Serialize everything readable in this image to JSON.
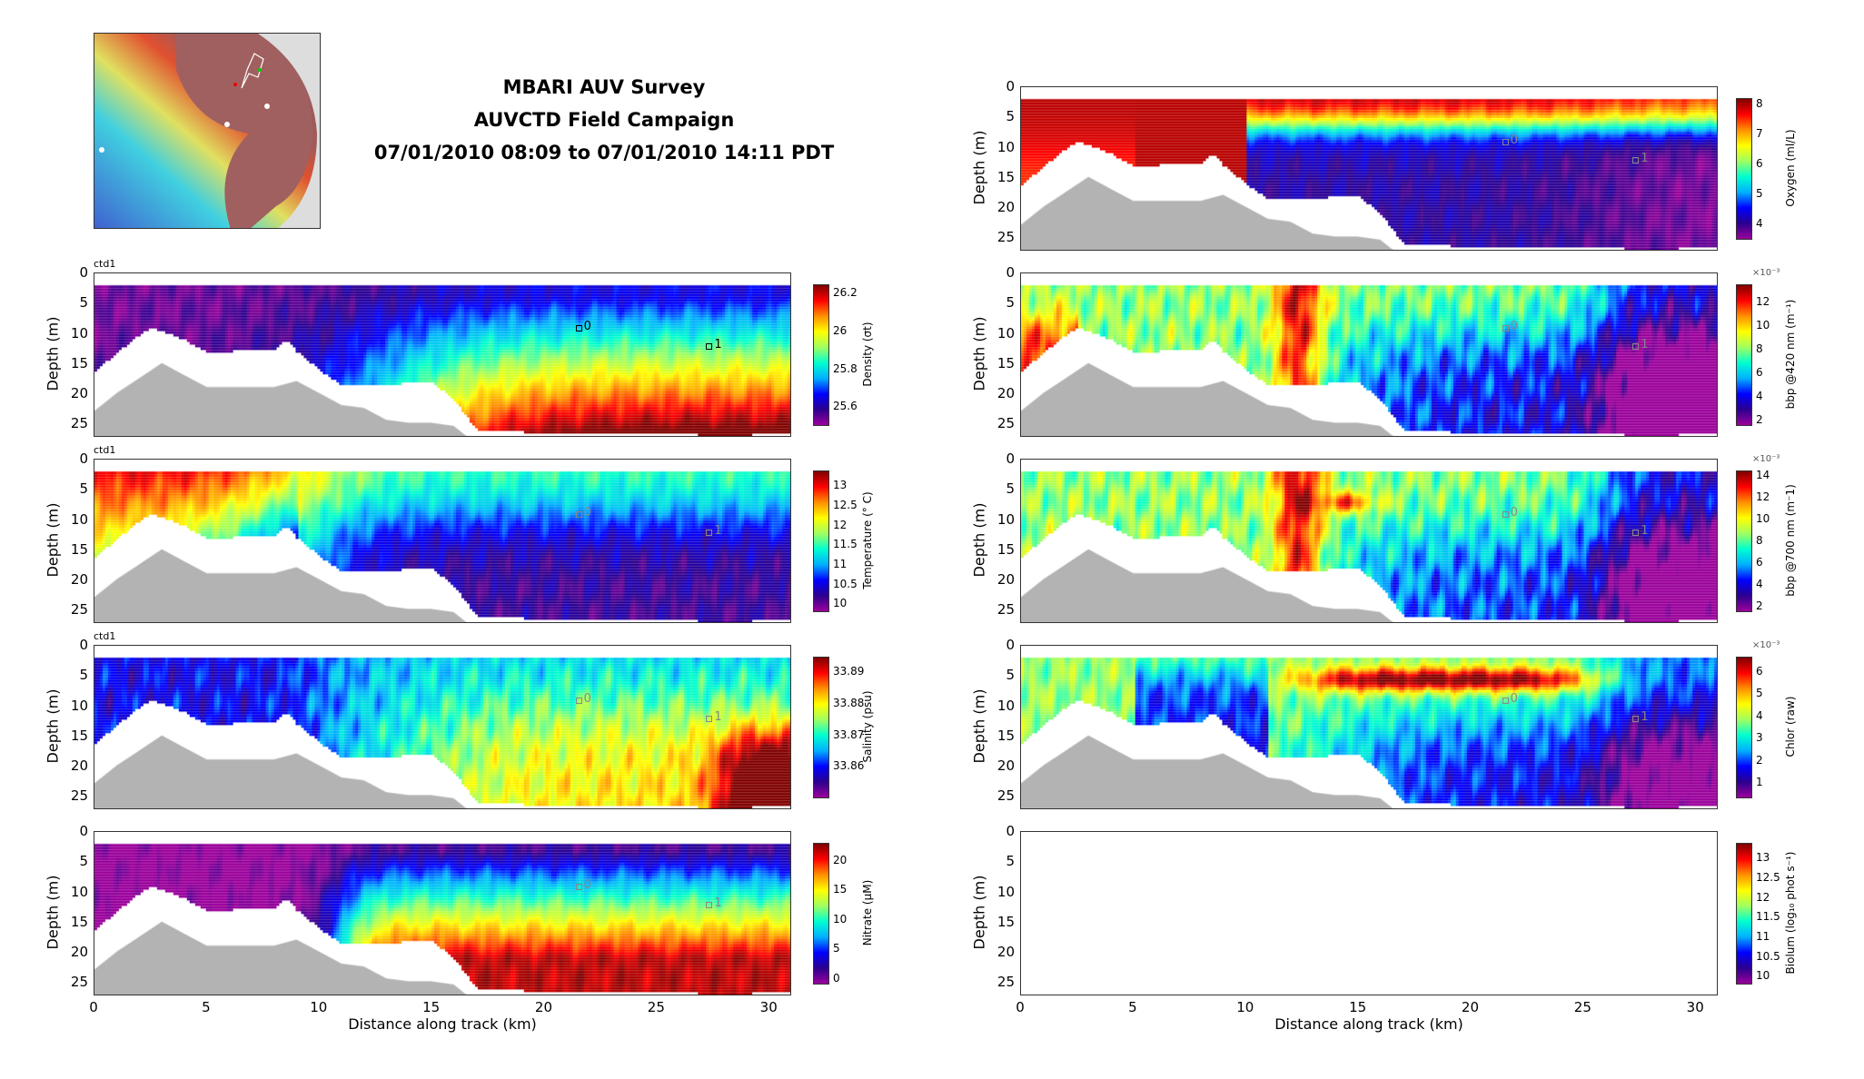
{
  "header": {
    "title_line1": "MBARI AUV Survey",
    "title_line2": "AUVCTD Field Campaign",
    "title_line3": "07/01/2010 08:09 to 07/01/2010 14:11 PDT"
  },
  "axes": {
    "xlabel": "Distance along track (km)",
    "ylabel": "Depth (m)",
    "xticks": [
      "0",
      "5",
      "10",
      "15",
      "20",
      "25",
      "30"
    ],
    "yticks": [
      "0",
      "5",
      "10",
      "15",
      "20",
      "25"
    ],
    "xlim": [
      0,
      31
    ],
    "ylim": [
      0,
      27.2
    ],
    "panel_tag": "ctd1"
  },
  "markers": [
    {
      "label": "0",
      "x_km": 21.5,
      "depth_m": 9
    },
    {
      "label": "1",
      "x_km": 27.3,
      "depth_m": 12
    }
  ],
  "chart_data": [
    {
      "type": "heatmap",
      "name": "density",
      "colorbar_label": "Density (σt)",
      "ticks": [
        "25.6",
        "25.8",
        "26",
        "26.2"
      ],
      "range": [
        25.5,
        26.25
      ],
      "tag": "ctd1"
    },
    {
      "type": "heatmap",
      "name": "temperature",
      "colorbar_label": "Temperature (° C)",
      "ticks": [
        "13",
        "12.5",
        "12",
        "11.5",
        "11",
        "10.5",
        "10"
      ],
      "range": [
        9.8,
        13.4
      ],
      "tag": "ctd1"
    },
    {
      "type": "heatmap",
      "name": "salinity",
      "colorbar_label": "Salinity (psu)",
      "ticks": [
        "33.86",
        "33.87",
        "33.88",
        "33.89"
      ],
      "range": [
        33.85,
        33.895
      ],
      "tag": "ctd1"
    },
    {
      "type": "heatmap",
      "name": "nitrate",
      "colorbar_label": "Nitrate (μM)",
      "ticks": [
        "0",
        "5",
        "10",
        "15",
        "20"
      ],
      "range": [
        -1,
        23
      ]
    },
    {
      "type": "heatmap",
      "name": "oxygen",
      "colorbar_label": "Oxygen (ml/L)",
      "ticks": [
        "8",
        "7",
        "6",
        "5",
        "4"
      ],
      "range": [
        3.5,
        8.2
      ]
    },
    {
      "type": "heatmap",
      "name": "bbp420",
      "colorbar_label": "bbp @420 nm (m⁻¹)",
      "exponent": "×10⁻³",
      "ticks": [
        "12",
        "10",
        "8",
        "6",
        "4",
        "2"
      ],
      "range": [
        1.5,
        13.5
      ]
    },
    {
      "type": "heatmap",
      "name": "bbp700",
      "colorbar_label": "bbp @700 nm (m⁻1)",
      "exponent": "×10⁻³",
      "ticks": [
        "14",
        "12",
        "10",
        "8",
        "6",
        "4",
        "2"
      ],
      "range": [
        1.5,
        14.5
      ]
    },
    {
      "type": "heatmap",
      "name": "chlor",
      "colorbar_label": "Chlor (raw)",
      "exponent": "×10⁻³",
      "ticks": [
        "6",
        "5",
        "4",
        "3",
        "2",
        "1"
      ],
      "range": [
        0.3,
        6.7
      ]
    },
    {
      "type": "heatmap",
      "name": "biolum",
      "colorbar_label": "Biolum (log₁₀ phot s⁻¹)",
      "ticks": [
        "13",
        "12.5",
        "12",
        "11.5",
        "11",
        "10.5",
        "10"
      ],
      "range": [
        9.8,
        13.4
      ],
      "empty": true
    }
  ],
  "seafloor": {
    "x_km": [
      0,
      1,
      2,
      3,
      4,
      5,
      8,
      9,
      10,
      11,
      12,
      13,
      14,
      15,
      16,
      16.5,
      17
    ],
    "depth_m": [
      23,
      20,
      17.5,
      15,
      17,
      19,
      19,
      18,
      20,
      22,
      22.5,
      24.5,
      25,
      25,
      25.5,
      27,
      28
    ]
  },
  "data_bottom": {
    "x_km": [
      0,
      1,
      2,
      2.5,
      3,
      4,
      5,
      8,
      8.5,
      9,
      10,
      11,
      12,
      15,
      16,
      17,
      20,
      25,
      28,
      31
    ],
    "depth_m": [
      16,
      13,
      10,
      9,
      9.5,
      11,
      13,
      12.5,
      11,
      13,
      16,
      18.5,
      18.5,
      18,
      21,
      26,
      26.5,
      26.5,
      27,
      26.5
    ]
  }
}
